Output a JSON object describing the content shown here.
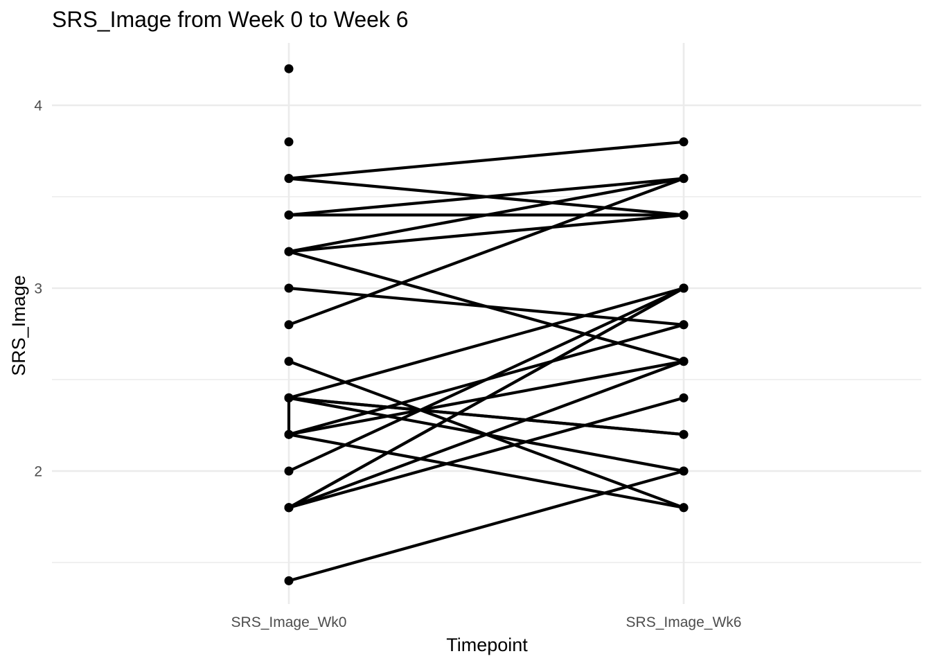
{
  "chart_data": {
    "type": "line",
    "title": "SRS_Image from Week 0 to Week 6",
    "xlabel": "Timepoint",
    "ylabel": "SRS_Image",
    "categories": [
      "SRS_Image_Wk0",
      "SRS_Image_Wk6"
    ],
    "ylim": [
      1.3,
      4.3
    ],
    "y_ticks": [
      2,
      3,
      4
    ],
    "grid": true,
    "colors": {
      "line": "#000000",
      "grid": "#ebebeb",
      "tick_text": "#4d4d4d"
    },
    "pairs": [
      [
        3.6,
        3.8
      ],
      [
        3.6,
        3.4
      ],
      [
        3.4,
        3.6
      ],
      [
        3.4,
        3.4
      ],
      [
        3.2,
        3.6
      ],
      [
        3.2,
        3.4
      ],
      [
        3.2,
        2.6
      ],
      [
        3.0,
        2.8
      ],
      [
        2.8,
        3.6
      ],
      [
        2.6,
        1.8
      ],
      [
        2.4,
        3.0
      ],
      [
        2.4,
        2.2
      ],
      [
        2.4,
        2.0
      ],
      [
        2.4,
        2.2
      ],
      [
        2.2,
        2.8
      ],
      [
        2.2,
        2.6
      ],
      [
        2.2,
        1.8
      ],
      [
        2.0,
        3.0
      ],
      [
        1.8,
        3.0
      ],
      [
        1.8,
        3.0
      ],
      [
        1.8,
        2.6
      ],
      [
        1.8,
        2.4
      ],
      [
        1.4,
        2.0
      ]
    ],
    "unpaired_wk0": [
      4.2,
      3.8
    ]
  }
}
